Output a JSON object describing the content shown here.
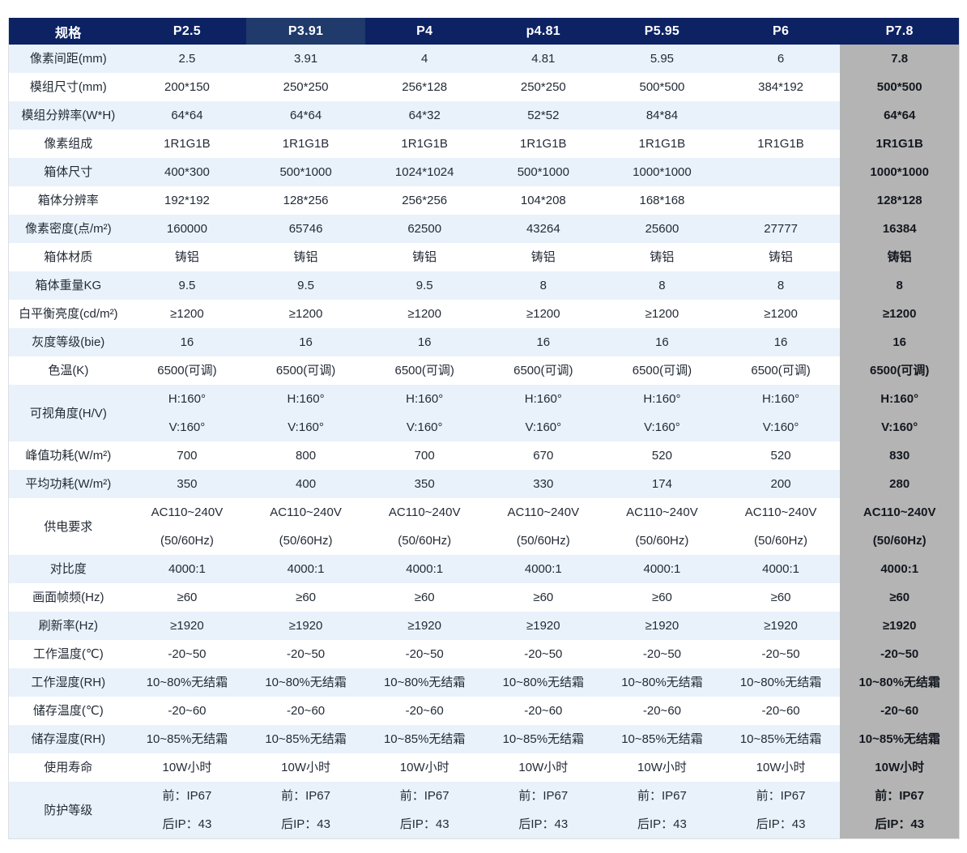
{
  "colors": {
    "header_bg": "#0d2263",
    "header_highlight_bg": "#1f3a6b",
    "header_text": "#ffffff",
    "row_stripe": "#e9f2fb",
    "row_white": "#ffffff",
    "last_col_bg": "#b4b4b4",
    "last_col_text": "#14181f",
    "text": "#242b36",
    "border": "#dcdfe4"
  },
  "table": {
    "columns": [
      {
        "label": "规格",
        "highlight": false
      },
      {
        "label": "P2.5",
        "highlight": false
      },
      {
        "label": "P3.91",
        "highlight": true
      },
      {
        "label": "P4",
        "highlight": false
      },
      {
        "label": "p4.81",
        "highlight": false
      },
      {
        "label": "P5.95",
        "highlight": false
      },
      {
        "label": "P6",
        "highlight": false
      },
      {
        "label": "P7.8",
        "highlight": false
      }
    ],
    "rows": [
      {
        "label": "像素间距(mm)",
        "two_line": false,
        "cells": [
          "2.5",
          "3.91",
          "4",
          "4.81",
          "5.95",
          "6",
          "7.8"
        ]
      },
      {
        "label": "模组尺寸(mm)",
        "two_line": false,
        "cells": [
          "200*150",
          "250*250",
          "256*128",
          "250*250",
          "500*500",
          "384*192",
          "500*500"
        ]
      },
      {
        "label": "模组分辨率(W*H)",
        "two_line": false,
        "cells": [
          "64*64",
          "64*64",
          "64*32",
          "52*52",
          "84*84",
          "",
          "64*64"
        ]
      },
      {
        "label": "像素组成",
        "two_line": false,
        "cells": [
          "1R1G1B",
          "1R1G1B",
          "1R1G1B",
          "1R1G1B",
          "1R1G1B",
          "1R1G1B",
          "1R1G1B"
        ]
      },
      {
        "label": "箱体尺寸",
        "two_line": false,
        "cells": [
          "400*300",
          "500*1000",
          "1024*1024",
          "500*1000",
          "1000*1000",
          "",
          "1000*1000"
        ]
      },
      {
        "label": "箱体分辨率",
        "two_line": false,
        "cells": [
          "192*192",
          "128*256",
          "256*256",
          "104*208",
          "168*168",
          "",
          "128*128"
        ]
      },
      {
        "label": "像素密度(点/m²)",
        "two_line": false,
        "cells": [
          "160000",
          "65746",
          "62500",
          "43264",
          "25600",
          "27777",
          "16384"
        ]
      },
      {
        "label": "箱体材质",
        "two_line": false,
        "cells": [
          "铸铝",
          "铸铝",
          "铸铝",
          "铸铝",
          "铸铝",
          "铸铝",
          "铸铝"
        ]
      },
      {
        "label": "箱体重量KG",
        "two_line": false,
        "cells": [
          "9.5",
          "9.5",
          "9.5",
          "8",
          "8",
          "8",
          "8"
        ]
      },
      {
        "label": "白平衡亮度(cd/m²)",
        "two_line": false,
        "cells": [
          "≥1200",
          "≥1200",
          "≥1200",
          "≥1200",
          "≥1200",
          "≥1200",
          "≥1200"
        ]
      },
      {
        "label": "灰度等级(bie)",
        "two_line": false,
        "cells": [
          "16",
          "16",
          "16",
          "16",
          "16",
          "16",
          "16"
        ]
      },
      {
        "label": "色温(K)",
        "two_line": false,
        "cells": [
          "6500(可调)",
          "6500(可调)",
          "6500(可调)",
          "6500(可调)",
          "6500(可调)",
          "6500(可调)",
          "6500(可调)"
        ]
      },
      {
        "label": "可视角度(H/V)",
        "two_line": true,
        "cells": [
          "H:160°\nV:160°",
          "H:160°\nV:160°",
          "H:160°\nV:160°",
          "H:160°\nV:160°",
          "H:160°\nV:160°",
          "H:160°\nV:160°",
          "H:160°\nV:160°"
        ]
      },
      {
        "label": "峰值功耗(W/m²)",
        "two_line": false,
        "cells": [
          "700",
          "800",
          "700",
          "670",
          "520",
          "520",
          "830"
        ]
      },
      {
        "label": "平均功耗(W/m²)",
        "two_line": false,
        "cells": [
          "350",
          "400",
          "350",
          "330",
          "174",
          "200",
          "280"
        ]
      },
      {
        "label": "供电要求",
        "two_line": true,
        "cells": [
          "AC110~240V\n(50/60Hz)",
          "AC110~240V\n(50/60Hz)",
          "AC110~240V\n(50/60Hz)",
          "AC110~240V\n(50/60Hz)",
          "AC110~240V\n(50/60Hz)",
          "AC110~240V\n(50/60Hz)",
          "AC110~240V\n(50/60Hz)"
        ]
      },
      {
        "label": "对比度",
        "two_line": false,
        "cells": [
          "4000:1",
          "4000:1",
          "4000:1",
          "4000:1",
          "4000:1",
          "4000:1",
          "4000:1"
        ]
      },
      {
        "label": "画面帧频(Hz)",
        "two_line": false,
        "cells": [
          "≥60",
          "≥60",
          "≥60",
          "≥60",
          "≥60",
          "≥60",
          "≥60"
        ]
      },
      {
        "label": "刷新率(Hz)",
        "two_line": false,
        "cells": [
          "≥1920",
          "≥1920",
          "≥1920",
          "≥1920",
          "≥1920",
          "≥1920",
          "≥1920"
        ]
      },
      {
        "label": "工作温度(℃)",
        "two_line": false,
        "cells": [
          "-20~50",
          "-20~50",
          "-20~50",
          "-20~50",
          "-20~50",
          "-20~50",
          "-20~50"
        ]
      },
      {
        "label": "工作湿度(RH)",
        "two_line": false,
        "cells": [
          "10~80%无结霜",
          "10~80%无结霜",
          "10~80%无结霜",
          "10~80%无结霜",
          "10~80%无结霜",
          "10~80%无结霜",
          "10~80%无结霜"
        ]
      },
      {
        "label": "储存温度(℃)",
        "two_line": false,
        "cells": [
          "-20~60",
          "-20~60",
          "-20~60",
          "-20~60",
          "-20~60",
          "-20~60",
          "-20~60"
        ]
      },
      {
        "label": "储存湿度(RH)",
        "two_line": false,
        "cells": [
          "10~85%无结霜",
          "10~85%无结霜",
          "10~85%无结霜",
          "10~85%无结霜",
          "10~85%无结霜",
          "10~85%无结霜",
          "10~85%无结霜"
        ]
      },
      {
        "label": "使用寿命",
        "two_line": false,
        "cells": [
          "10W小时",
          "10W小时",
          "10W小时",
          "10W小时",
          "10W小时",
          "10W小时",
          "10W小时"
        ]
      },
      {
        "label": "防护等级",
        "two_line": true,
        "cells": [
          "前：IP67\n后IP：43",
          "前：IP67\n后IP：43",
          "前：IP67\n后IP：43",
          "前：IP67\n后IP：43",
          "前：IP67\n后IP：43",
          "前：IP67\n后IP：43",
          "前：IP67\n后IP：43"
        ]
      }
    ]
  }
}
